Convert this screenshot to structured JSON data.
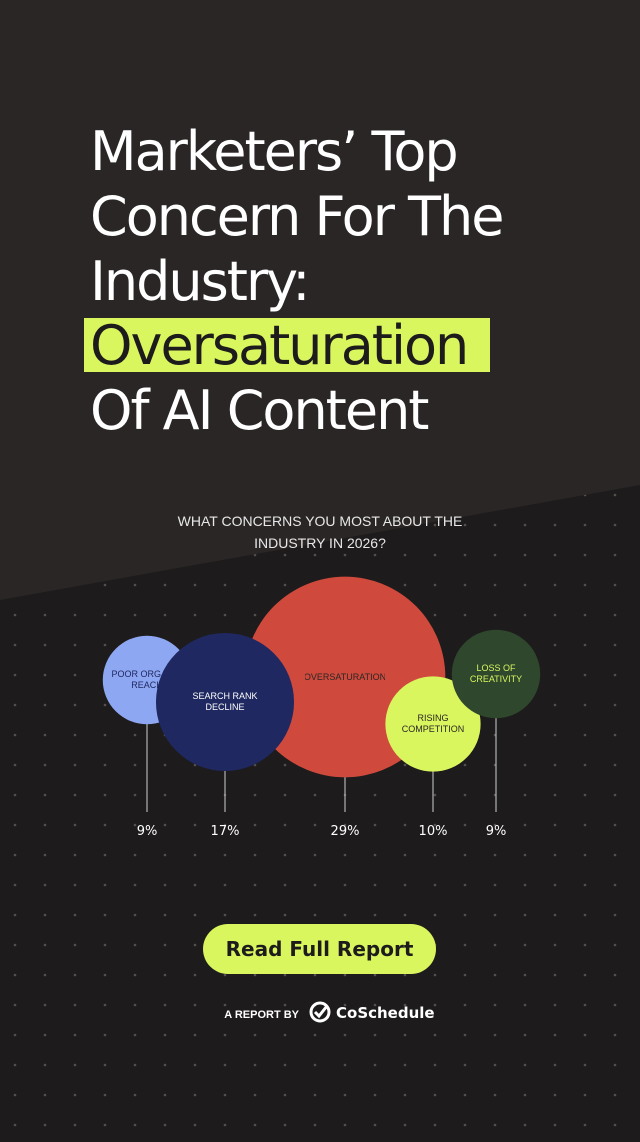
{
  "header": {
    "title_lines": [
      "Marketers’ Top",
      "Concern For The",
      "Industry:"
    ],
    "highlight": "Oversaturation",
    "title_end": "Of AI Content"
  },
  "chart_data": {
    "type": "bubble",
    "title": "WHAT CONCERNS YOU MOST ABOUT THE INDUSTRY IN 2026?",
    "categories": [
      "POOR ORGANIC REACH",
      "SEARCH RANK DECLINE",
      "OVERSATURATION",
      "RISING COMPETITION",
      "LOSS OF CREATIVITY"
    ],
    "values": [
      9,
      17,
      29,
      10,
      9
    ],
    "value_labels": [
      "9%",
      "17%",
      "29%",
      "10%",
      "9%"
    ],
    "colors": [
      "#8ea7f2",
      "#1f2860",
      "#cf4a3c",
      "#d9f65f",
      "#2e472d"
    ]
  },
  "footer": {
    "button": "Read Full Report",
    "report_by": "A REPORT BY",
    "brand": "CoSchedule"
  }
}
